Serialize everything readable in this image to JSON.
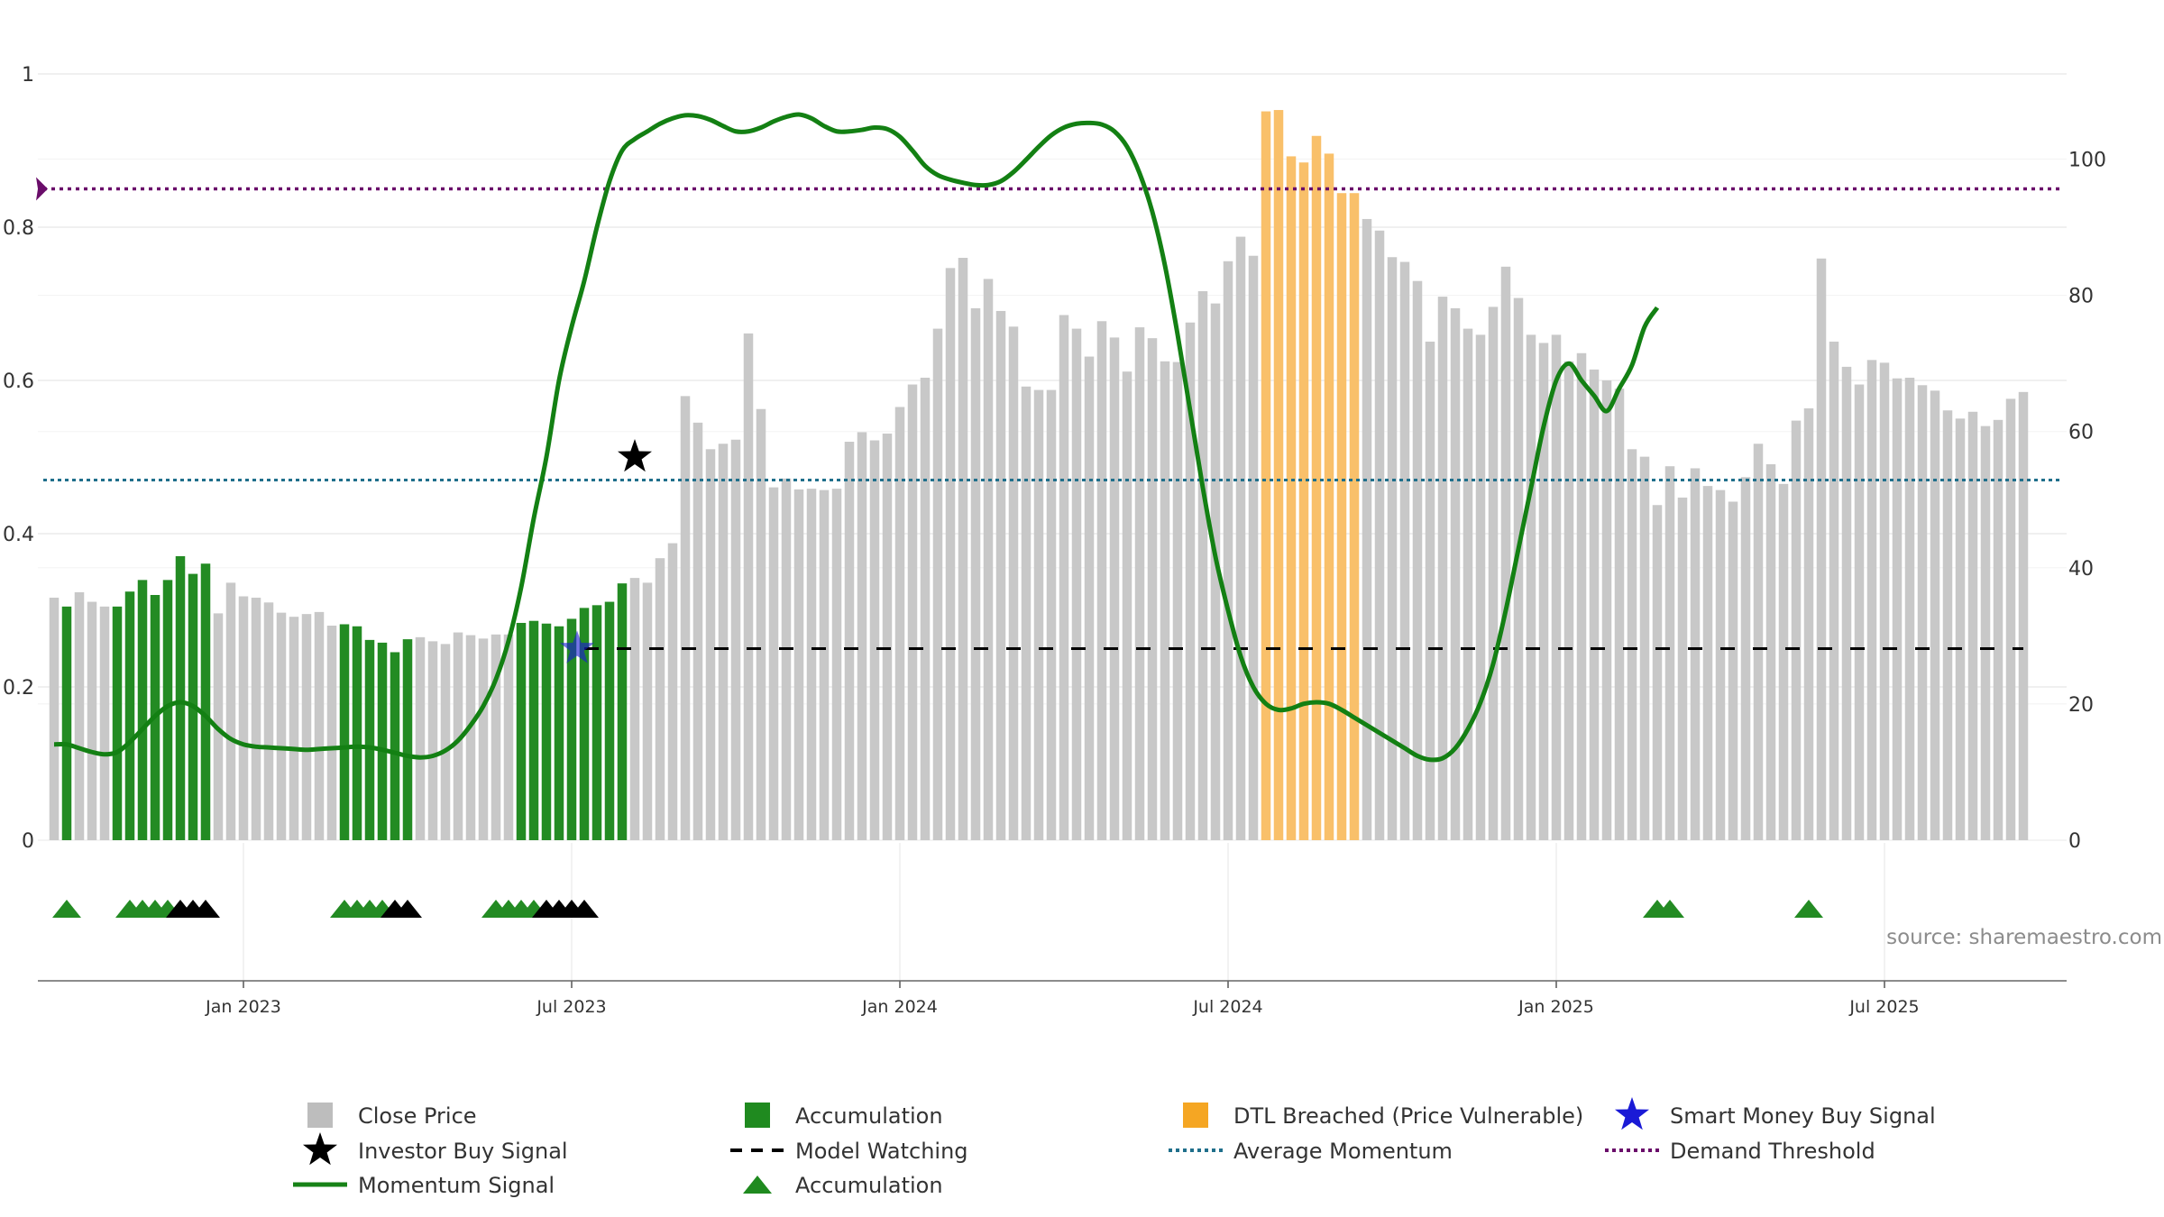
{
  "chart_data": {
    "type": "bar",
    "source": "source: sharemaestro.com",
    "left_axis": {
      "range": [
        0,
        1
      ],
      "ticks": [
        "0",
        "0.2",
        "0.4",
        "0.6",
        "0.8",
        "1"
      ]
    },
    "right_axis": {
      "range": [
        0,
        112.5
      ],
      "ticks": [
        "0",
        "20",
        "40",
        "60",
        "80",
        "100"
      ]
    },
    "x_ticks": [
      {
        "label": "Jan 2023",
        "week": 15
      },
      {
        "label": "Jul 2023",
        "week": 41
      },
      {
        "label": "Jan 2024",
        "week": 67
      },
      {
        "label": "Jul 2024",
        "week": 93
      },
      {
        "label": "Jan 2025",
        "week": 119
      },
      {
        "label": "Jul 2025",
        "week": 145
      }
    ],
    "close_price": [
      35.6,
      34.3,
      36.4,
      35.0,
      34.3,
      34.3,
      36.5,
      38.2,
      36.0,
      38.2,
      41.7,
      39.1,
      40.6,
      33.3,
      37.8,
      35.8,
      35.6,
      34.9,
      33.4,
      32.8,
      33.2,
      33.5,
      31.5,
      31.7,
      31.4,
      29.4,
      29.0,
      27.6,
      29.5,
      29.8,
      29.2,
      28.8,
      30.5,
      30.1,
      29.6,
      30.2,
      30.2,
      31.9,
      32.2,
      31.8,
      31.4,
      32.5,
      34.1,
      34.5,
      35.0,
      37.7,
      38.5,
      37.8,
      41.4,
      43.6,
      65.2,
      61.3,
      57.4,
      58.2,
      58.8,
      74.4,
      63.3,
      51.8,
      53.1,
      51.5,
      51.6,
      51.4,
      51.6,
      58.5,
      59.9,
      58.7,
      59.7,
      63.6,
      66.9,
      67.9,
      75.1,
      84.0,
      85.5,
      78.1,
      82.4,
      77.7,
      75.4,
      66.6,
      66.1,
      66.1,
      77.1,
      75.1,
      71.0,
      76.2,
      73.8,
      68.8,
      75.3,
      73.7,
      70.3,
      70.2,
      76.0,
      80.6,
      78.8,
      85.0,
      88.6,
      85.8,
      107.0,
      107.2,
      100.4,
      99.5,
      103.4,
      100.8,
      95.0,
      95.0,
      91.2,
      89.5,
      85.6,
      84.9,
      82.1,
      73.2,
      79.8,
      78.1,
      75.1,
      74.2,
      78.3,
      84.2,
      79.6,
      74.2,
      73.0,
      74.2,
      70.3,
      71.5,
      69.1,
      67.5,
      66.3,
      57.4,
      56.3,
      49.2,
      54.9,
      50.3,
      54.6,
      52.0,
      51.4,
      49.7,
      53.3,
      58.2,
      55.2,
      52.3,
      61.6,
      63.4,
      85.4,
      73.2,
      69.5,
      66.9,
      70.5,
      70.1,
      67.8,
      67.9,
      66.8,
      66.0,
      63.1,
      61.9,
      62.9,
      60.8,
      61.7,
      64.8,
      65.8
    ],
    "bar_state_codes": "0100011111111000000000011111100000000111111111000000000000000000000000000000000000000000000000000000000000000000000000000000000000000000000000000000000000000000000",
    "dtl_breached_weeks": [
      96,
      97,
      98,
      99,
      100,
      101,
      102,
      103
    ],
    "momentum_signal": [
      0.125,
      0.125,
      0.12,
      0.115,
      0.112,
      0.115,
      0.128,
      0.145,
      0.162,
      0.175,
      0.18,
      0.175,
      0.162,
      0.145,
      0.132,
      0.125,
      0.122,
      0.121,
      0.12,
      0.119,
      0.118,
      0.119,
      0.12,
      0.121,
      0.122,
      0.121,
      0.118,
      0.114,
      0.11,
      0.108,
      0.11,
      0.117,
      0.13,
      0.15,
      0.175,
      0.21,
      0.26,
      0.33,
      0.42,
      0.5,
      0.6,
      0.67,
      0.73,
      0.8,
      0.86,
      0.9,
      0.915,
      0.925,
      0.935,
      0.942,
      0.946,
      0.945,
      0.94,
      0.932,
      0.925,
      0.925,
      0.93,
      0.938,
      0.944,
      0.947,
      0.942,
      0.932,
      0.925,
      0.925,
      0.927,
      0.93,
      0.928,
      0.918,
      0.9,
      0.88,
      0.868,
      0.862,
      0.858,
      0.855,
      0.855,
      0.86,
      0.872,
      0.888,
      0.905,
      0.92,
      0.93,
      0.935,
      0.936,
      0.934,
      0.925,
      0.905,
      0.87,
      0.82,
      0.75,
      0.66,
      0.56,
      0.46,
      0.37,
      0.3,
      0.24,
      0.2,
      0.178,
      0.17,
      0.172,
      0.178,
      0.18,
      0.178,
      0.17,
      0.16,
      0.15,
      0.14,
      0.13,
      0.12,
      0.11,
      0.105,
      0.107,
      0.12,
      0.145,
      0.18,
      0.23,
      0.3,
      0.38,
      0.46,
      0.54,
      0.6,
      0.622,
      0.6,
      0.58,
      0.56,
      0.59,
      0.62,
      0.67,
      0.695
    ],
    "momentum_signal_start_week": 0,
    "average_momentum": 0.47,
    "demand_threshold": 0.85,
    "model_watching": {
      "level": 0.25,
      "from_week": 42,
      "to_week": 156
    },
    "investor_buy_signal": {
      "week": 46,
      "momentum": 0.5
    },
    "smart_money_buy_signal": {
      "week": 42,
      "momentum": 0.25
    },
    "accumulation_markers": [
      {
        "week": 1,
        "color": "green"
      },
      {
        "week": 6,
        "color": "green"
      },
      {
        "week": 7,
        "color": "green"
      },
      {
        "week": 8,
        "color": "green"
      },
      {
        "week": 9,
        "color": "green"
      },
      {
        "week": 10,
        "color": "black"
      },
      {
        "week": 11,
        "color": "black"
      },
      {
        "week": 12,
        "color": "black"
      },
      {
        "week": 23,
        "color": "green"
      },
      {
        "week": 24,
        "color": "green"
      },
      {
        "week": 25,
        "color": "green"
      },
      {
        "week": 26,
        "color": "green"
      },
      {
        "week": 27,
        "color": "black"
      },
      {
        "week": 28,
        "color": "black"
      },
      {
        "week": 35,
        "color": "green"
      },
      {
        "week": 36,
        "color": "green"
      },
      {
        "week": 37,
        "color": "green"
      },
      {
        "week": 38,
        "color": "green"
      },
      {
        "week": 39,
        "color": "black"
      },
      {
        "week": 40,
        "color": "black"
      },
      {
        "week": 41,
        "color": "black"
      },
      {
        "week": 42,
        "color": "black"
      },
      {
        "week": 127,
        "color": "green"
      },
      {
        "week": 128,
        "color": "green"
      },
      {
        "week": 139,
        "color": "green"
      }
    ],
    "legend": [
      {
        "label": "Close Price",
        "symbol": "square",
        "color": "#bdbdbd"
      },
      {
        "label": "Accumulation",
        "symbol": "square",
        "color": "#1f8a1f"
      },
      {
        "label": "DTL Breached (Price Vulnerable)",
        "symbol": "square",
        "color": "#f5a623"
      },
      {
        "label": "Smart Money Buy Signal",
        "symbol": "star",
        "color": "#1a1ad6"
      },
      {
        "label": "Investor Buy Signal",
        "symbol": "star",
        "color": "#000000"
      },
      {
        "label": "Model Watching",
        "symbol": "dash",
        "color": "#000000"
      },
      {
        "label": "Average Momentum",
        "symbol": "dot",
        "color": "#1f6f8b"
      },
      {
        "label": "Demand Threshold",
        "symbol": "dot",
        "color": "#6a0d6a"
      },
      {
        "label": "Momentum Signal",
        "symbol": "line",
        "color": "#178217"
      },
      {
        "label": "Accumulation",
        "symbol": "triangle",
        "color": "#1f8a1f"
      }
    ],
    "colors": {
      "close": "#c8c8c8",
      "accumulation": "#238b23",
      "dtl": "#f9c06a",
      "momentum": "#138013",
      "average": "#1f6f8b",
      "demand": "#6a0d6a",
      "smart_money": "#1a1ad6"
    }
  }
}
